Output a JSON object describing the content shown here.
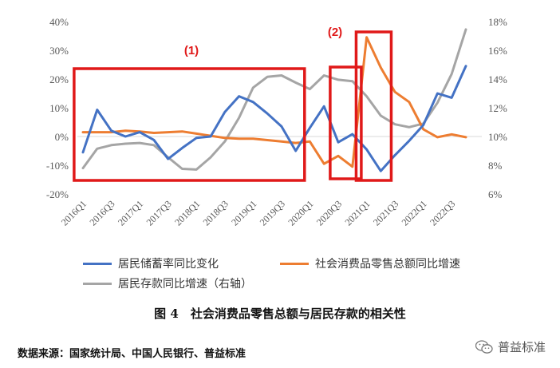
{
  "chart_data": {
    "type": "line",
    "categories": [
      "2016Q1",
      "2016Q2",
      "2016Q3",
      "2016Q4",
      "2017Q1",
      "2017Q2",
      "2017Q3",
      "2017Q4",
      "2018Q1",
      "2018Q2",
      "2018Q3",
      "2018Q4",
      "2019Q1",
      "2019Q2",
      "2019Q3",
      "2019Q4",
      "2020Q1",
      "2020Q2",
      "2020Q3",
      "2020Q4",
      "2021Q1",
      "2021Q2",
      "2021Q3",
      "2021Q4",
      "2022Q1",
      "2022Q2",
      "2022Q3",
      "2022Q4"
    ],
    "tick_labels": [
      "2016Q1",
      "2016Q3",
      "2017Q1",
      "2017Q3",
      "2018Q1",
      "2018Q3",
      "2019Q1",
      "2019Q3",
      "2020Q1",
      "2020Q3",
      "2021Q1",
      "2021Q3",
      "2022Q1",
      "2022Q3"
    ],
    "left_axis": {
      "ylim": [
        -0.2,
        0.4
      ],
      "ticks": [
        "-20%",
        "-10%",
        "0%",
        "10%",
        "20%",
        "30%",
        "40%"
      ]
    },
    "right_axis": {
      "ylim": [
        0.06,
        0.18
      ],
      "ticks": [
        "6%",
        "8%",
        "10%",
        "12%",
        "14%",
        "16%",
        "18%"
      ]
    },
    "series": [
      {
        "name": "居民储蓄率同比变化",
        "axis": "left",
        "color": "#4472c4",
        "values": [
          -0.055,
          0.093,
          0.02,
          0.0,
          0.015,
          -0.012,
          -0.078,
          -0.04,
          -0.005,
          0.0,
          0.085,
          0.14,
          0.12,
          0.08,
          0.035,
          -0.05,
          0.03,
          0.105,
          -0.02,
          0.008,
          -0.045,
          -0.12,
          -0.065,
          -0.015,
          0.04,
          0.15,
          0.135,
          0.245
        ]
      },
      {
        "name": "社会消费品零售总额同比增速",
        "axis": "right",
        "color": "#ed7d31",
        "values": [
          0.103,
          0.103,
          0.103,
          0.104,
          0.1035,
          0.1025,
          0.103,
          0.1035,
          0.102,
          0.1005,
          0.099,
          0.0985,
          0.0985,
          0.0975,
          0.0965,
          0.0955,
          0.0965,
          0.081,
          0.0865,
          0.079,
          0.169,
          0.148,
          0.131,
          0.124,
          0.105,
          0.0995,
          0.1015,
          0.0995
        ]
      },
      {
        "name": "居民存款同比增速（右轴）",
        "axis": "right",
        "color": "#a5a5a5",
        "values": [
          0.078,
          0.0915,
          0.094,
          0.095,
          0.0955,
          0.094,
          0.0855,
          0.0775,
          0.077,
          0.0855,
          0.0965,
          0.113,
          0.134,
          0.1415,
          0.1425,
          0.1375,
          0.133,
          0.1425,
          0.1395,
          0.1385,
          0.128,
          0.1145,
          0.1085,
          0.1065,
          0.109,
          0.1235,
          0.1435,
          0.1745
        ]
      }
    ],
    "annotations": [
      {
        "label": "(1)",
        "from": "2016Q1",
        "to": "2019Q4"
      },
      {
        "label": "(2)",
        "from": "2020Q3",
        "to": "2020Q4"
      },
      {
        "label": "",
        "from": "2021Q1",
        "to": "2021Q2"
      }
    ]
  },
  "caption": "图 4　社会消费品零售总额与居民存款的相关性",
  "source": "数据来源：国家统计局、中国人民银行、普益标准",
  "brand": {
    "name": "普益标准",
    "icon": "wechat-icon"
  }
}
